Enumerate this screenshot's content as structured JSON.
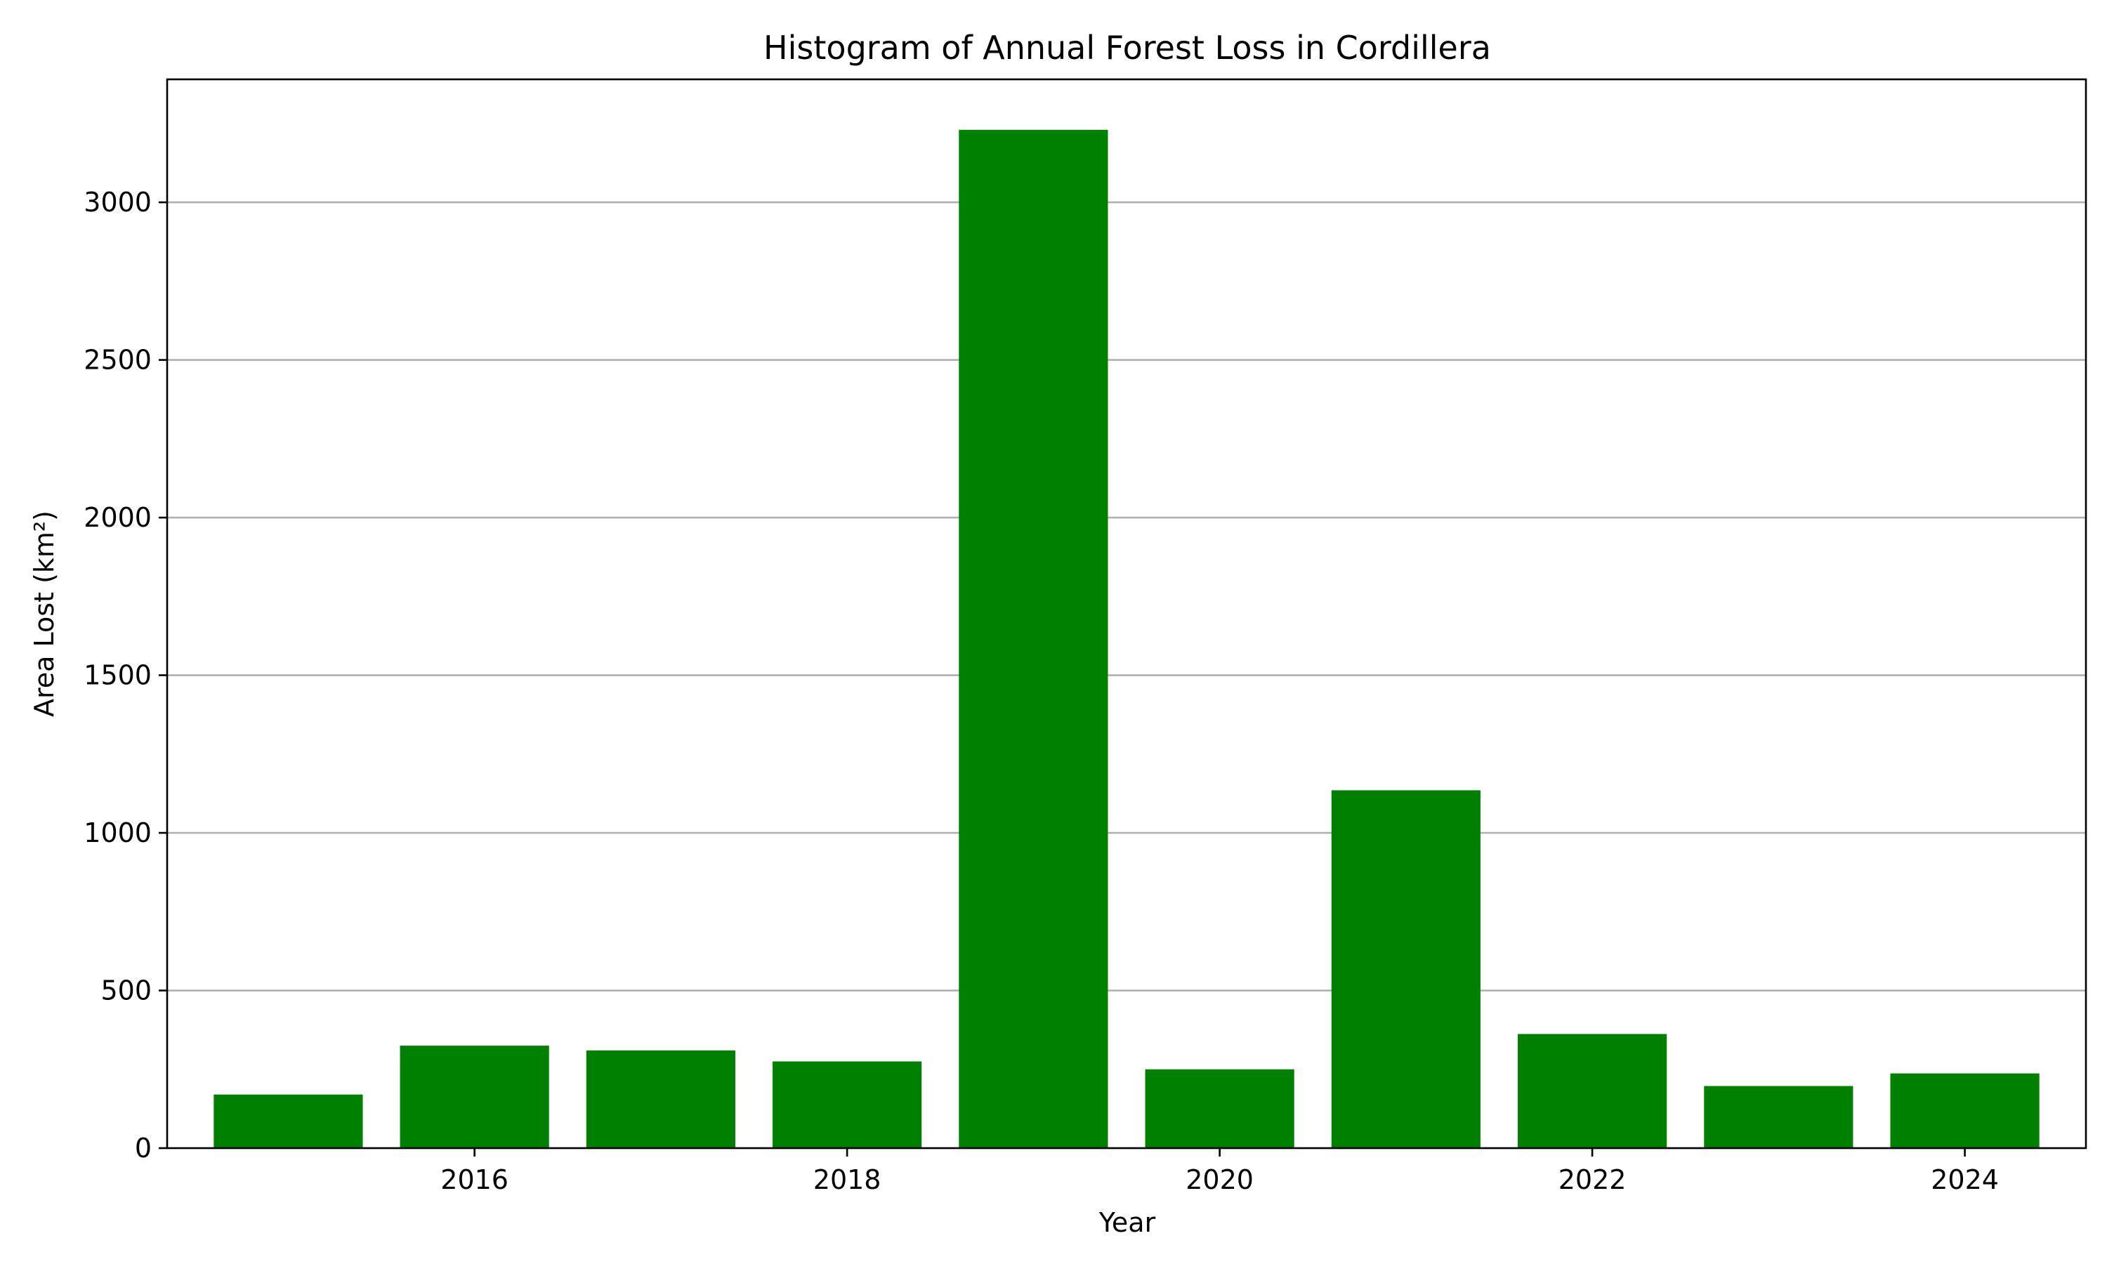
{
  "chart_data": {
    "type": "bar",
    "title": "Histogram of Annual Forest Loss in Cordillera",
    "xlabel": "Year",
    "ylabel": "Area Lost (km²)",
    "x": [
      2015,
      2016,
      2017,
      2018,
      2019,
      2020,
      2021,
      2022,
      2023,
      2024
    ],
    "values": [
      170,
      325,
      310,
      275,
      3230,
      250,
      1135,
      362,
      197,
      237
    ],
    "xlim": [
      2014.35,
      2024.65
    ],
    "ylim": [
      0,
      3390
    ],
    "x_ticks": [
      2016,
      2018,
      2020,
      2022,
      2024
    ],
    "x_tick_labels": [
      "2016",
      "2018",
      "2020",
      "2022",
      "2024"
    ],
    "y_ticks": [
      0,
      500,
      1000,
      1500,
      2000,
      2500,
      3000
    ],
    "y_tick_labels": [
      "0",
      "500",
      "1000",
      "1500",
      "2000",
      "2500",
      "3000"
    ],
    "bar_width": 0.8,
    "bar_color": "#008000",
    "grid": "y-axis only",
    "legend": "none"
  }
}
